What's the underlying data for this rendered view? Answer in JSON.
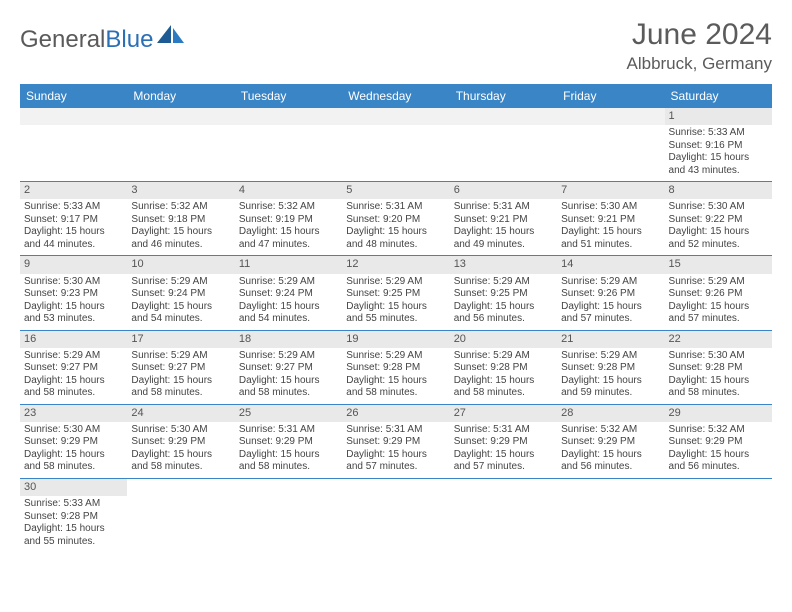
{
  "logo": {
    "text_gray": "General",
    "text_blue": "Blue"
  },
  "header": {
    "month_title": "June 2024",
    "location": "Albbruck, Germany"
  },
  "colors": {
    "header_bg": "#3a85c6",
    "header_text": "#ffffff",
    "daynum_bg": "#e9e9e9",
    "cell_border": "#3a85c6",
    "body_text": "#444444",
    "title_text": "#5b5b5b"
  },
  "typography": {
    "month_title_size": 30,
    "location_size": 17,
    "weekday_size": 12,
    "daynum_size": 11,
    "cell_size": 10,
    "font_family": "Arial"
  },
  "calendar": {
    "weekdays": [
      "Sunday",
      "Monday",
      "Tuesday",
      "Wednesday",
      "Thursday",
      "Friday",
      "Saturday"
    ],
    "rows": [
      [
        null,
        null,
        null,
        null,
        null,
        null,
        {
          "n": "1",
          "sunrise": "5:33 AM",
          "sunset": "9:16 PM",
          "daylight": "15 hours and 43 minutes."
        }
      ],
      [
        {
          "n": "2",
          "sunrise": "5:33 AM",
          "sunset": "9:17 PM",
          "daylight": "15 hours and 44 minutes."
        },
        {
          "n": "3",
          "sunrise": "5:32 AM",
          "sunset": "9:18 PM",
          "daylight": "15 hours and 46 minutes."
        },
        {
          "n": "4",
          "sunrise": "5:32 AM",
          "sunset": "9:19 PM",
          "daylight": "15 hours and 47 minutes."
        },
        {
          "n": "5",
          "sunrise": "5:31 AM",
          "sunset": "9:20 PM",
          "daylight": "15 hours and 48 minutes."
        },
        {
          "n": "6",
          "sunrise": "5:31 AM",
          "sunset": "9:21 PM",
          "daylight": "15 hours and 49 minutes."
        },
        {
          "n": "7",
          "sunrise": "5:30 AM",
          "sunset": "9:21 PM",
          "daylight": "15 hours and 51 minutes."
        },
        {
          "n": "8",
          "sunrise": "5:30 AM",
          "sunset": "9:22 PM",
          "daylight": "15 hours and 52 minutes."
        }
      ],
      [
        {
          "n": "9",
          "sunrise": "5:30 AM",
          "sunset": "9:23 PM",
          "daylight": "15 hours and 53 minutes."
        },
        {
          "n": "10",
          "sunrise": "5:29 AM",
          "sunset": "9:24 PM",
          "daylight": "15 hours and 54 minutes."
        },
        {
          "n": "11",
          "sunrise": "5:29 AM",
          "sunset": "9:24 PM",
          "daylight": "15 hours and 54 minutes."
        },
        {
          "n": "12",
          "sunrise": "5:29 AM",
          "sunset": "9:25 PM",
          "daylight": "15 hours and 55 minutes."
        },
        {
          "n": "13",
          "sunrise": "5:29 AM",
          "sunset": "9:25 PM",
          "daylight": "15 hours and 56 minutes."
        },
        {
          "n": "14",
          "sunrise": "5:29 AM",
          "sunset": "9:26 PM",
          "daylight": "15 hours and 57 minutes."
        },
        {
          "n": "15",
          "sunrise": "5:29 AM",
          "sunset": "9:26 PM",
          "daylight": "15 hours and 57 minutes."
        }
      ],
      [
        {
          "n": "16",
          "sunrise": "5:29 AM",
          "sunset": "9:27 PM",
          "daylight": "15 hours and 58 minutes."
        },
        {
          "n": "17",
          "sunrise": "5:29 AM",
          "sunset": "9:27 PM",
          "daylight": "15 hours and 58 minutes."
        },
        {
          "n": "18",
          "sunrise": "5:29 AM",
          "sunset": "9:27 PM",
          "daylight": "15 hours and 58 minutes."
        },
        {
          "n": "19",
          "sunrise": "5:29 AM",
          "sunset": "9:28 PM",
          "daylight": "15 hours and 58 minutes."
        },
        {
          "n": "20",
          "sunrise": "5:29 AM",
          "sunset": "9:28 PM",
          "daylight": "15 hours and 58 minutes."
        },
        {
          "n": "21",
          "sunrise": "5:29 AM",
          "sunset": "9:28 PM",
          "daylight": "15 hours and 59 minutes."
        },
        {
          "n": "22",
          "sunrise": "5:30 AM",
          "sunset": "9:28 PM",
          "daylight": "15 hours and 58 minutes."
        }
      ],
      [
        {
          "n": "23",
          "sunrise": "5:30 AM",
          "sunset": "9:29 PM",
          "daylight": "15 hours and 58 minutes."
        },
        {
          "n": "24",
          "sunrise": "5:30 AM",
          "sunset": "9:29 PM",
          "daylight": "15 hours and 58 minutes."
        },
        {
          "n": "25",
          "sunrise": "5:31 AM",
          "sunset": "9:29 PM",
          "daylight": "15 hours and 58 minutes."
        },
        {
          "n": "26",
          "sunrise": "5:31 AM",
          "sunset": "9:29 PM",
          "daylight": "15 hours and 57 minutes."
        },
        {
          "n": "27",
          "sunrise": "5:31 AM",
          "sunset": "9:29 PM",
          "daylight": "15 hours and 57 minutes."
        },
        {
          "n": "28",
          "sunrise": "5:32 AM",
          "sunset": "9:29 PM",
          "daylight": "15 hours and 56 minutes."
        },
        {
          "n": "29",
          "sunrise": "5:32 AM",
          "sunset": "9:29 PM",
          "daylight": "15 hours and 56 minutes."
        }
      ],
      [
        {
          "n": "30",
          "sunrise": "5:33 AM",
          "sunset": "9:28 PM",
          "daylight": "15 hours and 55 minutes."
        },
        null,
        null,
        null,
        null,
        null,
        null
      ]
    ],
    "labels": {
      "sunrise_prefix": "Sunrise: ",
      "sunset_prefix": "Sunset: ",
      "daylight_prefix": "Daylight: "
    }
  }
}
